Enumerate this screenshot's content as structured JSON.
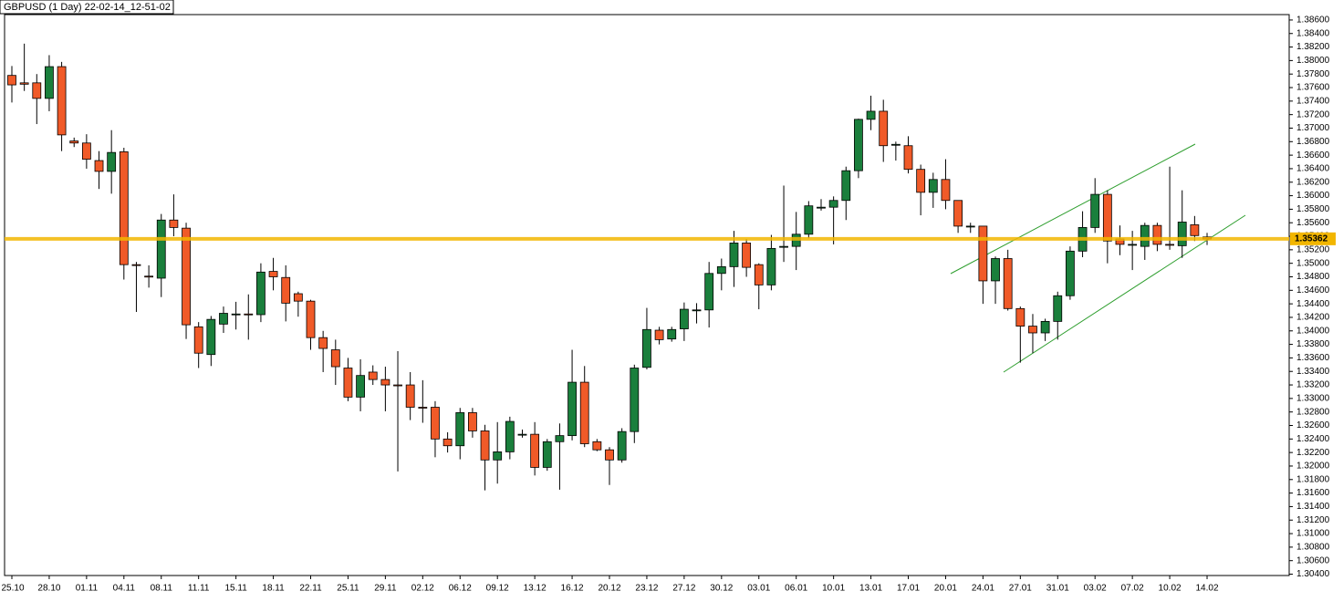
{
  "chart_data": {
    "type": "candlestick",
    "title": "GBPUSD (1 Day) 22-02-14_12-51-02",
    "categories": [
      "25.10",
      null,
      null,
      "28.10",
      null,
      null,
      "01.11",
      null,
      null,
      "04.11",
      null,
      null,
      "08.11",
      null,
      null,
      "11.11",
      null,
      null,
      "15.11",
      null,
      null,
      "18.11",
      null,
      null,
      "22.11",
      null,
      null,
      "25.11",
      null,
      null,
      "29.11",
      null,
      null,
      "02.12",
      null,
      null,
      "06.12",
      null,
      null,
      "09.12",
      null,
      null,
      "13.12",
      null,
      null,
      "16.12",
      null,
      null,
      "20.12",
      null,
      null,
      "23.12",
      null,
      null,
      "27.12",
      null,
      null,
      "30.12",
      null,
      null,
      "03.01",
      null,
      null,
      "06.01",
      null,
      null,
      "10.01",
      null,
      null,
      "13.01",
      null,
      null,
      "17.01",
      null,
      null,
      "20.01",
      null,
      null,
      "24.01",
      null,
      null,
      "27.01",
      null,
      null,
      "31.01",
      null,
      null,
      "03.02",
      null,
      null,
      "07.02",
      null,
      null,
      "10.02",
      null,
      null,
      "14.02"
    ],
    "open": [
      1.3778,
      1.3767,
      1.3767,
      1.3744,
      1.3791,
      1.3681,
      1.3678,
      1.3652,
      1.3636,
      1.3665,
      1.3498,
      1.3481,
      1.3478,
      1.3564,
      1.3552,
      1.3406,
      1.3365,
      1.341,
      1.3425,
      1.3425,
      1.3424,
      1.3488,
      1.3479,
      1.3455,
      1.3444,
      1.339,
      1.3372,
      1.3345,
      1.3302,
      1.3339,
      1.3328,
      1.332,
      1.332,
      1.3287,
      1.3287,
      1.324,
      1.323,
      1.3279,
      1.3252,
      1.3209,
      1.3221,
      1.3247,
      1.3247,
      1.3198,
      1.3236,
      1.3245,
      1.3324,
      1.3236,
      1.3224,
      1.3209,
      1.3251,
      1.3346,
      1.3401,
      1.3388,
      1.3403,
      1.3431,
      1.3431,
      1.3485,
      1.3495,
      1.353,
      1.3498,
      1.3468,
      1.3525,
      1.3525,
      1.3543,
      1.3582,
      1.3583,
      1.3593,
      1.3637,
      1.3713,
      1.3725,
      1.3676,
      1.3674,
      1.3639,
      1.3605,
      1.3624,
      1.3593,
      1.3555,
      1.3555,
      1.3474,
      1.3507,
      1.3433,
      1.3407,
      1.3397,
      1.3414,
      1.3452,
      1.3518,
      1.3553,
      1.3602,
      1.3536,
      1.3528,
      1.3525,
      1.3556,
      1.3528,
      1.3526,
      1.3557,
      1.3539
    ],
    "high": [
      1.3792,
      1.3825,
      1.378,
      1.3808,
      1.3798,
      1.3686,
      1.3691,
      1.3666,
      1.3697,
      1.3671,
      1.3502,
      1.3497,
      1.3573,
      1.3602,
      1.356,
      1.3413,
      1.3422,
      1.3436,
      1.3443,
      1.3454,
      1.35,
      1.3508,
      1.3497,
      1.3458,
      1.3446,
      1.34,
      1.3387,
      1.336,
      1.3358,
      1.3349,
      1.3347,
      1.337,
      1.3339,
      1.3327,
      1.3296,
      1.325,
      1.3286,
      1.3286,
      1.3261,
      1.3265,
      1.3273,
      1.3254,
      1.3265,
      1.324,
      1.3263,
      1.3372,
      1.3348,
      1.324,
      1.3228,
      1.3256,
      1.335,
      1.3434,
      1.3406,
      1.3406,
      1.3442,
      1.3441,
      1.3502,
      1.3507,
      1.3548,
      1.3536,
      1.35,
      1.3542,
      1.3615,
      1.3576,
      1.3592,
      1.3595,
      1.3599,
      1.3643,
      1.3714,
      1.3748,
      1.3742,
      1.368,
      1.3688,
      1.3646,
      1.3634,
      1.3654,
      1.3593,
      1.356,
      1.3555,
      1.351,
      1.352,
      1.3436,
      1.3425,
      1.3418,
      1.3458,
      1.3525,
      1.3577,
      1.3626,
      1.3608,
      1.3556,
      1.3548,
      1.356,
      1.356,
      1.3643,
      1.3608,
      1.357,
      1.3545
    ],
    "low": [
      1.3738,
      1.3755,
      1.3706,
      1.3725,
      1.3666,
      1.3672,
      1.364,
      1.361,
      1.3603,
      1.3476,
      1.3428,
      1.3464,
      1.345,
      1.354,
      1.3388,
      1.3345,
      1.3348,
      1.3397,
      1.3402,
      1.3387,
      1.3413,
      1.346,
      1.3414,
      1.3421,
      1.3372,
      1.3339,
      1.332,
      1.3296,
      1.3281,
      1.332,
      1.3281,
      1.3192,
      1.3268,
      1.3264,
      1.3213,
      1.322,
      1.321,
      1.3242,
      1.3164,
      1.3174,
      1.321,
      1.3242,
      1.3186,
      1.3193,
      1.3165,
      1.3238,
      1.3228,
      1.3222,
      1.3172,
      1.3205,
      1.3234,
      1.3343,
      1.338,
      1.3384,
      1.3385,
      1.3411,
      1.3405,
      1.346,
      1.3465,
      1.348,
      1.3432,
      1.346,
      1.3502,
      1.349,
      1.3537,
      1.3578,
      1.3528,
      1.3564,
      1.3626,
      1.3697,
      1.365,
      1.3652,
      1.3633,
      1.3571,
      1.3582,
      1.358,
      1.3545,
      1.3545,
      1.344,
      1.344,
      1.343,
      1.3353,
      1.3367,
      1.3385,
      1.3387,
      1.3446,
      1.3509,
      1.3545,
      1.35,
      1.3512,
      1.349,
      1.3505,
      1.3518,
      1.352,
      1.3508,
      1.3533,
      1.3527
    ],
    "close": [
      1.3764,
      1.3765,
      1.3744,
      1.3791,
      1.369,
      1.3678,
      1.3654,
      1.3636,
      1.3664,
      1.3498,
      1.3497,
      1.348,
      1.3564,
      1.3553,
      1.3409,
      1.3367,
      1.3417,
      1.3426,
      1.3425,
      1.3424,
      1.3487,
      1.348,
      1.3441,
      1.3444,
      1.339,
      1.3374,
      1.3347,
      1.3302,
      1.3334,
      1.3328,
      1.332,
      1.3319,
      1.3287,
      1.3286,
      1.324,
      1.323,
      1.3279,
      1.3252,
      1.3209,
      1.3221,
      1.3266,
      1.3247,
      1.3198,
      1.3236,
      1.3245,
      1.3324,
      1.3233,
      1.3224,
      1.3209,
      1.3251,
      1.3345,
      1.3402,
      1.3387,
      1.3402,
      1.3432,
      1.3431,
      1.3485,
      1.3495,
      1.353,
      1.3494,
      1.3468,
      1.3522,
      1.3525,
      1.3543,
      1.3585,
      1.3583,
      1.3593,
      1.3637,
      1.3713,
      1.3725,
      1.3674,
      1.3676,
      1.3639,
      1.3605,
      1.3624,
      1.3593,
      1.3555,
      1.3555,
      1.3474,
      1.3507,
      1.3433,
      1.3407,
      1.3397,
      1.3414,
      1.3452,
      1.3518,
      1.3553,
      1.3602,
      1.3533,
      1.3528,
      1.3528,
      1.3556,
      1.3528,
      1.3527,
      1.3561,
      1.3541,
      1.3536
    ],
    "up_color": "#1a7f3c",
    "down_color": "#f05a28",
    "ylim": [
      1.3038,
      1.3868
    ],
    "yticks": [
      {
        "value": 1.386,
        "label": "1.38600"
      },
      {
        "value": 1.384,
        "label": "1.38400"
      },
      {
        "value": 1.382,
        "label": "1.38200"
      },
      {
        "value": 1.38,
        "label": "1.38000"
      },
      {
        "value": 1.378,
        "label": "1.37800"
      },
      {
        "value": 1.376,
        "label": "1.37600"
      },
      {
        "value": 1.374,
        "label": "1.37400"
      },
      {
        "value": 1.372,
        "label": "1.37200"
      },
      {
        "value": 1.37,
        "label": "1.37000"
      },
      {
        "value": 1.368,
        "label": "1.36800"
      },
      {
        "value": 1.366,
        "label": "1.36600"
      },
      {
        "value": 1.364,
        "label": "1.36400"
      },
      {
        "value": 1.362,
        "label": "1.36200"
      },
      {
        "value": 1.36,
        "label": "1.36000"
      },
      {
        "value": 1.358,
        "label": "1.35800"
      },
      {
        "value": 1.356,
        "label": "1.35600"
      },
      {
        "value": 1.354,
        "label": "1.35400"
      },
      {
        "value": 1.352,
        "label": "1.35200"
      },
      {
        "value": 1.35,
        "label": "1.35000"
      },
      {
        "value": 1.348,
        "label": "1.34800"
      },
      {
        "value": 1.346,
        "label": "1.34600"
      },
      {
        "value": 1.344,
        "label": "1.34400"
      },
      {
        "value": 1.342,
        "label": "1.34200"
      },
      {
        "value": 1.34,
        "label": "1.34000"
      },
      {
        "value": 1.338,
        "label": "1.33800"
      },
      {
        "value": 1.336,
        "label": "1.33600"
      },
      {
        "value": 1.334,
        "label": "1.33400"
      },
      {
        "value": 1.332,
        "label": "1.33200"
      },
      {
        "value": 1.33,
        "label": "1.33000"
      },
      {
        "value": 1.328,
        "label": "1.32800"
      },
      {
        "value": 1.326,
        "label": "1.32600"
      },
      {
        "value": 1.324,
        "label": "1.32400"
      },
      {
        "value": 1.322,
        "label": "1.32200"
      },
      {
        "value": 1.32,
        "label": "1.32000"
      },
      {
        "value": 1.318,
        "label": "1.31800"
      },
      {
        "value": 1.316,
        "label": "1.31600"
      },
      {
        "value": 1.314,
        "label": "1.31400"
      },
      {
        "value": 1.312,
        "label": "1.31200"
      },
      {
        "value": 1.31,
        "label": "1.31000"
      },
      {
        "value": 1.308,
        "label": "1.30800"
      },
      {
        "value": 1.306,
        "label": "1.30600"
      },
      {
        "value": 1.304,
        "label": "1.30400"
      }
    ],
    "current_price": {
      "value": 1.35362,
      "label": "1.35362",
      "color": "#f2b600"
    }
  }
}
